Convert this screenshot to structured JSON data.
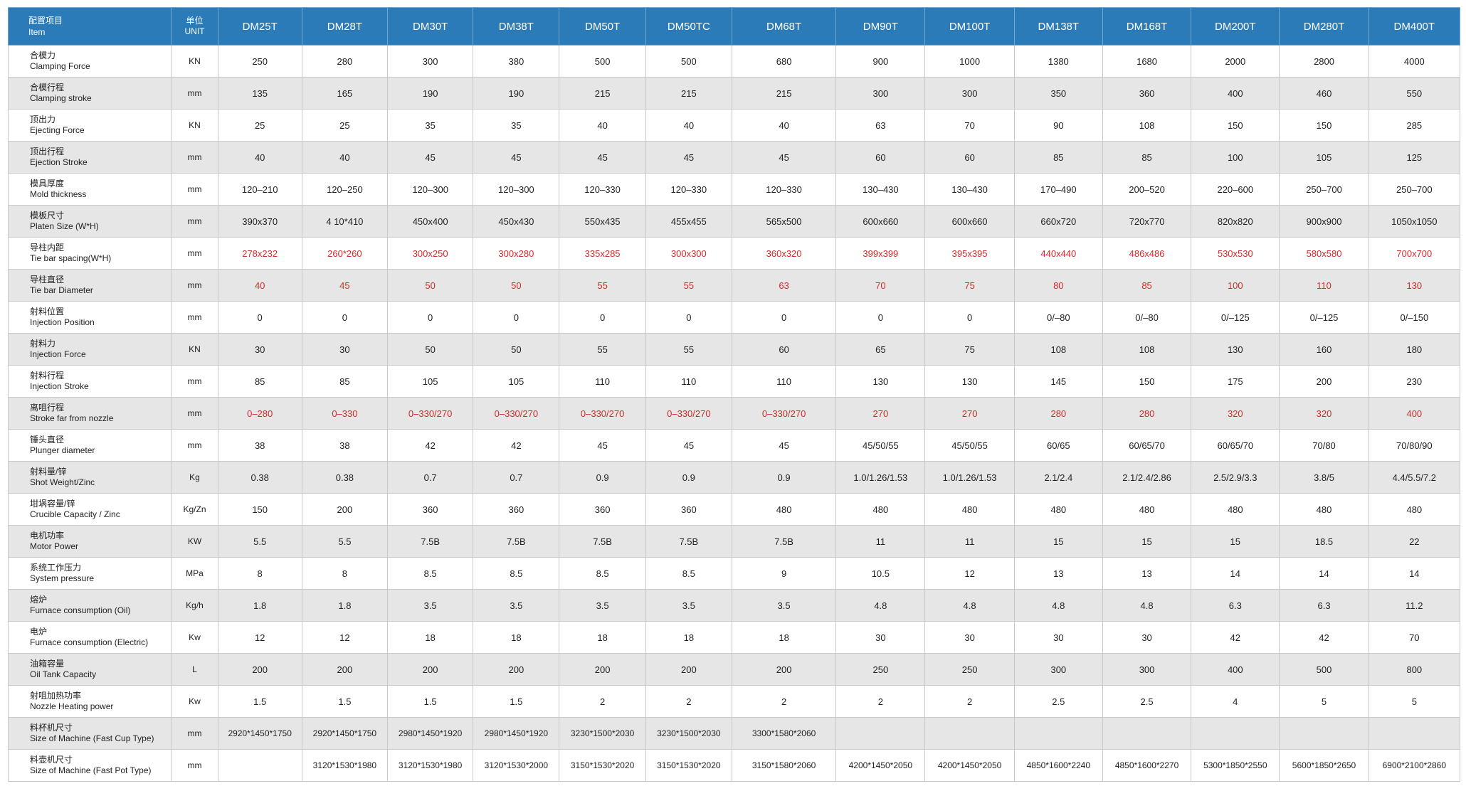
{
  "header": {
    "item_cn": "配置项目",
    "item_en": "Item",
    "unit_cn": "单位",
    "unit_en": "UNIT",
    "models": [
      "DM25T",
      "DM28T",
      "DM30T",
      "DM38T",
      "DM50T",
      "DM50TC",
      "DM68T",
      "DM90T",
      "DM100T",
      "DM138T",
      "DM168T",
      "DM200T",
      "DM280T",
      "DM400T"
    ]
  },
  "colors": {
    "header_bg": "#2a7bb8",
    "stripe_bg": "#e6e6e6",
    "highlight_text": "#d32a2a"
  },
  "rows": [
    {
      "cn": "合模力",
      "en": "Clamping Force",
      "unit": "KN",
      "highlight": false,
      "values": [
        "250",
        "280",
        "300",
        "380",
        "500",
        "500",
        "680",
        "900",
        "1000",
        "1380",
        "1680",
        "2000",
        "2800",
        "4000"
      ]
    },
    {
      "cn": "合模行程",
      "en": "Clamping stroke",
      "unit": "mm",
      "highlight": false,
      "values": [
        "135",
        "165",
        "190",
        "190",
        "215",
        "215",
        "215",
        "300",
        "300",
        "350",
        "360",
        "400",
        "460",
        "550"
      ]
    },
    {
      "cn": "顶出力",
      "en": "Ejecting Force",
      "unit": "KN",
      "highlight": false,
      "values": [
        "25",
        "25",
        "35",
        "35",
        "40",
        "40",
        "40",
        "63",
        "70",
        "90",
        "108",
        "150",
        "150",
        "285"
      ]
    },
    {
      "cn": "顶出行程",
      "en": "Ejection Stroke",
      "unit": "mm",
      "highlight": false,
      "values": [
        "40",
        "40",
        "45",
        "45",
        "45",
        "45",
        "45",
        "60",
        "60",
        "85",
        "85",
        "100",
        "105",
        "125"
      ]
    },
    {
      "cn": "模具厚度",
      "en": "Mold thickness",
      "unit": "mm",
      "highlight": false,
      "values": [
        "120–210",
        "120–250",
        "120–300",
        "120–300",
        "120–330",
        "120–330",
        "120–330",
        "130–430",
        "130–430",
        "170–490",
        "200–520",
        "220–600",
        "250–700",
        "250–700"
      ]
    },
    {
      "cn": "模板尺寸",
      "en": "Platen Size (W*H)",
      "unit": "mm",
      "highlight": false,
      "values": [
        "390x370",
        "4 10*410",
        "450x400",
        "450x430",
        "550x435",
        "455x455",
        "565x500",
        "600x660",
        "600x660",
        "660x720",
        "720x770",
        "820x820",
        "900x900",
        "1050x1050"
      ]
    },
    {
      "cn": "导柱内距",
      "en": "Tie bar spacing(W*H)",
      "unit": "mm",
      "highlight": true,
      "values": [
        "278x232",
        "260*260",
        "300x250",
        "300x280",
        "335x285",
        "300x300",
        "360x320",
        "399x399",
        "395x395",
        "440x440",
        "486x486",
        "530x530",
        "580x580",
        "700x700"
      ]
    },
    {
      "cn": "导柱直径",
      "en": "Tie bar Diameter",
      "unit": "mm",
      "highlight": true,
      "values": [
        "40",
        "45",
        "50",
        "50",
        "55",
        "55",
        "63",
        "70",
        "75",
        "80",
        "85",
        "100",
        "110",
        "130"
      ]
    },
    {
      "cn": "射料位置",
      "en": "Injection Position",
      "unit": "mm",
      "highlight": false,
      "values": [
        "0",
        "0",
        "0",
        "0",
        "0",
        "0",
        "0",
        "0",
        "0",
        "0/–80",
        "0/–80",
        "0/–125",
        "0/–125",
        "0/–150"
      ]
    },
    {
      "cn": "射料力",
      "en": "Injection Force",
      "unit": "KN",
      "highlight": false,
      "values": [
        "30",
        "30",
        "50",
        "50",
        "55",
        "55",
        "60",
        "65",
        "75",
        "108",
        "108",
        "130",
        "160",
        "180"
      ]
    },
    {
      "cn": "射料行程",
      "en": "Injection Stroke",
      "unit": "mm",
      "highlight": false,
      "values": [
        "85",
        "85",
        "105",
        "105",
        "110",
        "110",
        "110",
        "130",
        "130",
        "145",
        "150",
        "175",
        "200",
        "230"
      ]
    },
    {
      "cn": "离咀行程",
      "en": "Stroke far from nozzle",
      "unit": "mm",
      "highlight": true,
      "values": [
        "0–280",
        "0–330",
        "0–330/270",
        "0–330/270",
        "0–330/270",
        "0–330/270",
        "0–330/270",
        "270",
        "270",
        "280",
        "280",
        "320",
        "320",
        "400"
      ]
    },
    {
      "cn": "锤头直径",
      "en": "Plunger diameter",
      "unit": "mm",
      "highlight": false,
      "values": [
        "38",
        "38",
        "42",
        "42",
        "45",
        "45",
        "45",
        "45/50/55",
        "45/50/55",
        "60/65",
        "60/65/70",
        "60/65/70",
        "70/80",
        "70/80/90"
      ]
    },
    {
      "cn": "射料量/锌",
      "en": "Shot Weight/Zinc",
      "unit": "Kg",
      "highlight": false,
      "values": [
        "0.38",
        "0.38",
        "0.7",
        "0.7",
        "0.9",
        "0.9",
        "0.9",
        "1.0/1.26/1.53",
        "1.0/1.26/1.53",
        "2.1/2.4",
        "2.1/2.4/2.86",
        "2.5/2.9/3.3",
        "3.8/5",
        "4.4/5.5/7.2"
      ]
    },
    {
      "cn": "坩埚容量/锌",
      "en": "Crucible Capacity / Zinc",
      "unit": "Kg/Zn",
      "highlight": false,
      "values": [
        "150",
        "200",
        "360",
        "360",
        "360",
        "360",
        "480",
        "480",
        "480",
        "480",
        "480",
        "480",
        "480",
        "480"
      ]
    },
    {
      "cn": "电机功率",
      "en": "Motor Power",
      "unit": "KW",
      "highlight": false,
      "values": [
        "5.5",
        "5.5",
        "7.5B",
        "7.5B",
        "7.5B",
        "7.5B",
        "7.5B",
        "11",
        "11",
        "15",
        "15",
        "15",
        "18.5",
        "22"
      ]
    },
    {
      "cn": "系统工作压力",
      "en": "System pressure",
      "unit": "MPa",
      "highlight": false,
      "values": [
        "8",
        "8",
        "8.5",
        "8.5",
        "8.5",
        "8.5",
        "9",
        "10.5",
        "12",
        "13",
        "13",
        "14",
        "14",
        "14"
      ]
    },
    {
      "cn": "熔炉",
      "en": "Furnace consumption (Oil)",
      "unit": "Kg/h",
      "highlight": false,
      "values": [
        "1.8",
        "1.8",
        "3.5",
        "3.5",
        "3.5",
        "3.5",
        "3.5",
        "4.8",
        "4.8",
        "4.8",
        "4.8",
        "6.3",
        "6.3",
        "11.2"
      ]
    },
    {
      "cn": "电炉",
      "en": "Furnace consumption (Electric)",
      "unit": "Kw",
      "highlight": false,
      "values": [
        "12",
        "12",
        "18",
        "18",
        "18",
        "18",
        "18",
        "30",
        "30",
        "30",
        "30",
        "42",
        "42",
        "70"
      ]
    },
    {
      "cn": "油箱容量",
      "en": "Oil Tank Capacity",
      "unit": "L",
      "highlight": false,
      "values": [
        "200",
        "200",
        "200",
        "200",
        "200",
        "200",
        "200",
        "250",
        "250",
        "300",
        "300",
        "400",
        "500",
        "800"
      ]
    },
    {
      "cn": "射咀加热功率",
      "en": "Nozzle Heating power",
      "unit": "Kw",
      "highlight": false,
      "values": [
        "1.5",
        "1.5",
        "1.5",
        "1.5",
        "2",
        "2",
        "2",
        "2",
        "2",
        "2.5",
        "2.5",
        "4",
        "5",
        "5"
      ]
    },
    {
      "cn": "料杯机尺寸",
      "en": "Size of Machine (Fast Cup Type)",
      "unit": "mm",
      "highlight": false,
      "values": [
        "2920*1450*1750",
        "2920*1450*1750",
        "2980*1450*1920",
        "2980*1450*1920",
        "3230*1500*2030",
        "3230*1500*2030",
        "3300*1580*2060",
        "",
        "",
        "",
        "",
        "",
        "",
        ""
      ]
    },
    {
      "cn": "料壶机尺寸",
      "en": "Size of Machine (Fast Pot Type)",
      "unit": "mm",
      "highlight": false,
      "values": [
        "",
        "3120*1530*1980",
        "3120*1530*1980",
        "3120*1530*2000",
        "3150*1530*2020",
        "3150*1530*2020",
        "3150*1580*2060",
        "4200*1450*2050",
        "4200*1450*2050",
        "4850*1600*2240",
        "4850*1600*2270",
        "5300*1850*2550",
        "5600*1850*2650",
        "6900*2100*2860"
      ]
    }
  ]
}
